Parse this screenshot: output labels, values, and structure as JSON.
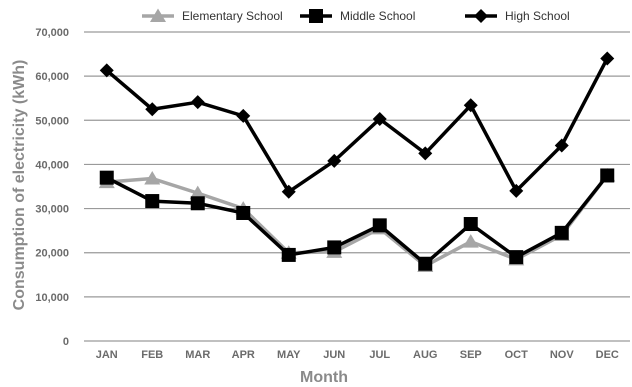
{
  "chart_data": {
    "type": "line",
    "title": "",
    "xlabel": "Month",
    "ylabel": "Consumption of electricity (kWh)",
    "categories": [
      "JAN",
      "FEB",
      "MAR",
      "APR",
      "MAY",
      "JUN",
      "JUL",
      "AUG",
      "SEP",
      "OCT",
      "NOV",
      "DEC"
    ],
    "ylim": [
      0,
      70000
    ],
    "yticks": [
      0,
      10000,
      20000,
      30000,
      40000,
      50000,
      60000,
      70000
    ],
    "ytick_labels": [
      "0",
      "10,000",
      "20,000",
      "30,000",
      "40,000",
      "50,000",
      "60,000",
      "70,000"
    ],
    "grid": "horizontal",
    "legend_position": "top",
    "series": [
      {
        "name": "Elementary School",
        "marker": "triangle",
        "color": "#a6a6a6",
        "values": [
          36000,
          36800,
          33500,
          30000,
          20000,
          20200,
          25500,
          17000,
          22500,
          18500,
          24000,
          37500
        ]
      },
      {
        "name": "Middle School",
        "marker": "square",
        "color": "#000000",
        "values": [
          37000,
          31700,
          31200,
          29000,
          19500,
          21200,
          26200,
          17500,
          26500,
          19000,
          24500,
          37500
        ]
      },
      {
        "name": "High School",
        "marker": "diamond",
        "color": "#000000",
        "values": [
          61300,
          52500,
          54100,
          51000,
          33800,
          40800,
          50300,
          42500,
          53400,
          34000,
          44300,
          64000
        ]
      }
    ]
  }
}
